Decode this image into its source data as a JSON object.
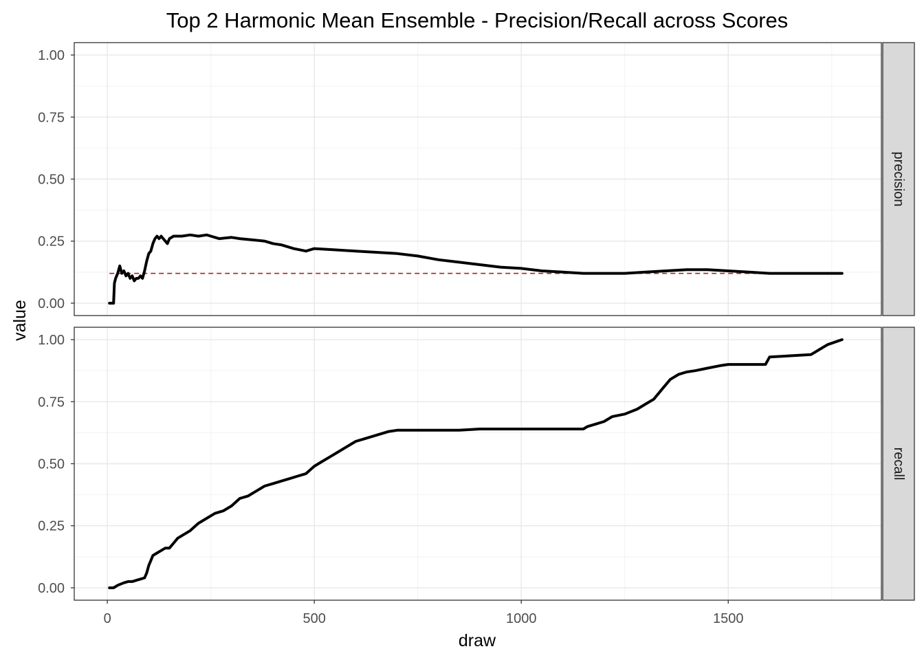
{
  "chart_data": {
    "type": "line",
    "title": "Top 2 Harmonic Mean Ensemble - Precision/Recall across Scores",
    "xlabel": "draw",
    "ylabel": "value",
    "xlim": [
      -80,
      1870
    ],
    "ylim": [
      -0.05,
      1.05
    ],
    "x_ticks": [
      0,
      500,
      1000,
      1500
    ],
    "x_tick_labels": [
      "0",
      "500",
      "1000",
      "1500"
    ],
    "y_ticks": [
      0,
      0.25,
      0.5,
      0.75,
      1
    ],
    "y_tick_labels": [
      "0.00",
      "0.25",
      "0.50",
      "0.75",
      "1.00"
    ],
    "grid": true,
    "facets": [
      {
        "strip_label": "precision",
        "reference_line": {
          "y": 0.12,
          "style": "dashed",
          "color": "#b22222"
        },
        "series": [
          {
            "x": [
              5,
              15,
              17,
              20,
              25,
              30,
              35,
              40,
              45,
              50,
              55,
              60,
              65,
              70,
              75,
              80,
              85,
              90,
              95,
              100,
              105,
              110,
              115,
              120,
              125,
              130,
              135,
              140,
              145,
              150,
              160,
              170,
              180,
              200,
              220,
              240,
              250,
              270,
              300,
              320,
              350,
              380,
              400,
              420,
              450,
              480,
              500,
              550,
              600,
              650,
              700,
              750,
              800,
              850,
              900,
              950,
              1000,
              1050,
              1100,
              1150,
              1200,
              1250,
              1300,
              1350,
              1400,
              1450,
              1500,
              1550,
              1600,
              1650,
              1700,
              1775
            ],
            "y": [
              0,
              0,
              0.08,
              0.1,
              0.12,
              0.15,
              0.12,
              0.13,
              0.11,
              0.12,
              0.1,
              0.11,
              0.09,
              0.1,
              0.1,
              0.11,
              0.1,
              0.13,
              0.17,
              0.2,
              0.21,
              0.24,
              0.26,
              0.27,
              0.26,
              0.27,
              0.26,
              0.25,
              0.24,
              0.26,
              0.27,
              0.27,
              0.27,
              0.275,
              0.27,
              0.275,
              0.27,
              0.26,
              0.265,
              0.26,
              0.255,
              0.25,
              0.24,
              0.235,
              0.22,
              0.21,
              0.22,
              0.215,
              0.21,
              0.205,
              0.2,
              0.19,
              0.175,
              0.165,
              0.155,
              0.145,
              0.14,
              0.13,
              0.125,
              0.12,
              0.12,
              0.12,
              0.125,
              0.13,
              0.135,
              0.135,
              0.13,
              0.125,
              0.12,
              0.12,
              0.12,
              0.12
            ]
          }
        ]
      },
      {
        "strip_label": "recall",
        "series": [
          {
            "x": [
              5,
              15,
              25,
              40,
              50,
              60,
              70,
              80,
              90,
              95,
              100,
              105,
              110,
              120,
              130,
              140,
              150,
              160,
              170,
              180,
              200,
              220,
              240,
              260,
              280,
              300,
              320,
              340,
              360,
              380,
              400,
              420,
              440,
              460,
              480,
              500,
              520,
              540,
              560,
              580,
              600,
              620,
              640,
              660,
              680,
              700,
              750,
              800,
              850,
              900,
              950,
              1000,
              1050,
              1100,
              1150,
              1160,
              1180,
              1200,
              1220,
              1250,
              1280,
              1300,
              1320,
              1340,
              1360,
              1380,
              1400,
              1420,
              1450,
              1480,
              1500,
              1550,
              1590,
              1600,
              1650,
              1700,
              1720,
              1740,
              1775
            ],
            "y": [
              0,
              0,
              0.01,
              0.02,
              0.025,
              0.025,
              0.03,
              0.035,
              0.04,
              0.06,
              0.09,
              0.11,
              0.13,
              0.14,
              0.15,
              0.16,
              0.16,
              0.18,
              0.2,
              0.21,
              0.23,
              0.26,
              0.28,
              0.3,
              0.31,
              0.33,
              0.36,
              0.37,
              0.39,
              0.41,
              0.42,
              0.43,
              0.44,
              0.45,
              0.46,
              0.49,
              0.51,
              0.53,
              0.55,
              0.57,
              0.59,
              0.6,
              0.61,
              0.62,
              0.63,
              0.635,
              0.635,
              0.635,
              0.635,
              0.64,
              0.64,
              0.64,
              0.64,
              0.64,
              0.64,
              0.65,
              0.66,
              0.67,
              0.69,
              0.7,
              0.72,
              0.74,
              0.76,
              0.8,
              0.84,
              0.86,
              0.87,
              0.875,
              0.885,
              0.895,
              0.9,
              0.9,
              0.9,
              0.93,
              0.935,
              0.94,
              0.96,
              0.98,
              1.0
            ]
          }
        ]
      }
    ]
  }
}
